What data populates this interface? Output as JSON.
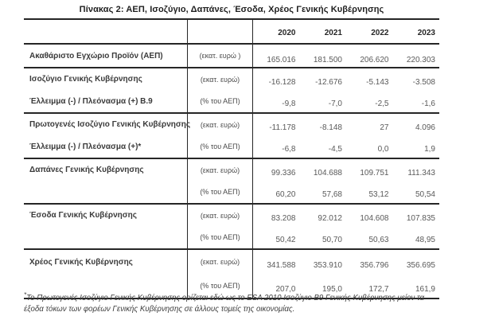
{
  "title": "Πίνακας 2: ΑΕΠ, Ισοζύγιο, Δαπάνες, Έσοδα, Χρέος Γενικής Κυβέρνησης",
  "table": {
    "year_headers": [
      "2020",
      "2021",
      "2022",
      "2023"
    ],
    "groups": [
      {
        "rows": [
          {
            "label": "Ακαθάριστο Εγχώριο Προϊόν (ΑΕΠ)",
            "unit": "(εκατ.  ευρώ )",
            "values": [
              "165.016",
              "181.500",
              "206.620",
              "220.303"
            ]
          }
        ]
      },
      {
        "rows": [
          {
            "label": "Ισοζύγιο Γενικής Κυβέρνησης",
            "unit": "(εκατ.  ευρώ)",
            "values": [
              "-16.128",
              "-12.676",
              "-5.143",
              "-3.508"
            ]
          },
          {
            "label": "Έλλειμμα  (-) / Πλεόνασμα (+) Β.9",
            "unit": "(% του ΑΕΠ)",
            "values": [
              "-9,8",
              "-7,0",
              "-2,5",
              "-1,6"
            ]
          }
        ]
      },
      {
        "rows": [
          {
            "label": "Πρωτογενές Ισοζύγιο  Γενικής Κυβέρνησης",
            "unit": "(εκατ.  ευρώ)",
            "values": [
              "-11.178",
              "-8.148",
              "27",
              "4.096"
            ]
          },
          {
            "label": "Έλλειμμα (-) / Πλεόνασμα (+)*",
            "unit": "(% του ΑΕΠ)",
            "values": [
              "-6,8",
              "-4,5",
              "0,0",
              "1,9"
            ]
          }
        ]
      },
      {
        "rows": [
          {
            "label": "Δαπάνες Γενικής Κυβέρνησης",
            "unit": "(εκατ.  ευρώ)",
            "values": [
              "99.336",
              "104.688",
              "109.751",
              "111.343"
            ]
          },
          {
            "label": "",
            "unit": "(% του ΑΕΠ)",
            "values": [
              "60,20",
              "57,68",
              "53,12",
              "50,54"
            ]
          }
        ]
      },
      {
        "rows": [
          {
            "label": "Έσοδα Γενικής Κυβέρνησης",
            "unit": "(εκατ.  ευρώ)",
            "values": [
              "83.208",
              "92.012",
              "104.608",
              "107.835"
            ]
          },
          {
            "label": "",
            "unit": "(% του ΑΕΠ)",
            "values": [
              "50,42",
              "50,70",
              "50,63",
              "48,95"
            ]
          }
        ]
      },
      {
        "rows": [
          {
            "label": "Χρέος Γενικής Κυβέρνησης",
            "unit": "(εκατ.  ευρώ)",
            "values": [
              "341.588",
              "353.910",
              "356.796",
              "356.695"
            ]
          },
          {
            "label": "",
            "unit": "(% του ΑΕΠ)",
            "values": [
              "207,0",
              "195,0",
              "172,7",
              "161,9"
            ]
          }
        ]
      }
    ]
  },
  "footnote": {
    "star": "*",
    "text": "Το Πρωτογενές Ισοζύγιο Γενικής Κυβέρνησης ορίζεται εδώ ως το ESA 2010 Ισοζύγιο Β9 Γενικής Κυβέρνησης μείον τα έξοδα τόκων των φορέων Γενικής Κυβέρνησης σε άλλους τομείς της οικονομίας."
  },
  "colors": {
    "background": "#ffffff",
    "border": "#262626",
    "label_text": "#3a3a3a",
    "value_text": "#595959"
  }
}
